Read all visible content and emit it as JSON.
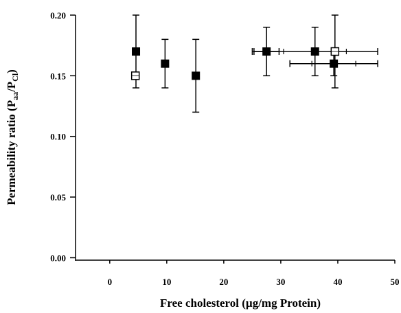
{
  "chart_data": {
    "type": "scatter",
    "xlabel": "Free cholesterol (µg/mg Protein)",
    "ylabel": {
      "prefix": "Permeability ratio (P",
      "sub1": "aa",
      "mid": "/P",
      "sub2": "Cl",
      "suffix": ")"
    },
    "xlim": [
      -6,
      50
    ],
    "ylim": [
      -0.002,
      0.2
    ],
    "x_ticks": [
      0,
      10,
      20,
      30,
      40,
      50
    ],
    "x_tick_labels": [
      "0",
      "10",
      "20",
      "30",
      "40",
      "50"
    ],
    "y_ticks": [
      0.0,
      0.05,
      0.1,
      0.15,
      0.2
    ],
    "y_tick_labels": [
      "0.00",
      "0.05",
      "0.10",
      "0.15",
      "0.20"
    ],
    "grid": false,
    "legend": "none",
    "series": [
      {
        "marker": "filled-square",
        "points": [
          {
            "x": 4.6,
            "y": 0.17,
            "y_err": 0.03
          },
          {
            "x": 9.7,
            "y": 0.16,
            "y_err": 0.02
          },
          {
            "x": 15.1,
            "y": 0.15,
            "y_err": 0.03
          },
          {
            "x": 27.5,
            "y": 0.17,
            "y_err": 0.02,
            "x_err": 2.2
          },
          {
            "x": 36.0,
            "y": 0.17,
            "y_err": 0.02,
            "x_err": 11.0
          },
          {
            "x": 39.3,
            "y": 0.16,
            "y_err": 0.01,
            "x_err": 7.7
          }
        ]
      },
      {
        "marker": "open-square",
        "points": [
          {
            "x": 4.5,
            "y": 0.15,
            "y_err": 0.0
          },
          {
            "x": 39.5,
            "y": 0.17,
            "y_err": 0.03,
            "x_err": 0
          }
        ]
      }
    ],
    "colors": {
      "ink": "#000000",
      "background": "#ffffff"
    }
  }
}
